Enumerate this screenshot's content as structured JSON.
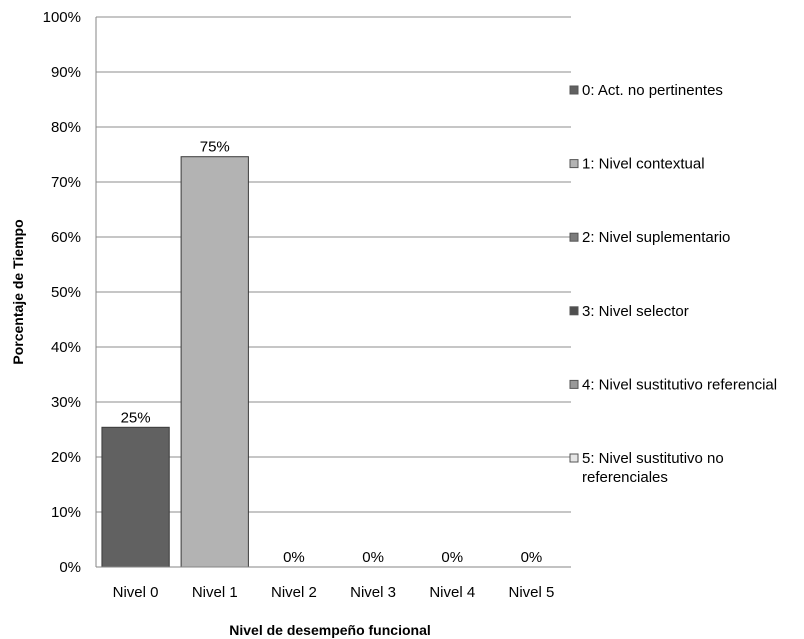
{
  "chart_data": {
    "type": "bar",
    "title": "",
    "xlabel": "Nivel de desempeño funcional",
    "ylabel": "Porcentaje de Tiempo",
    "categories": [
      "Nivel 0",
      "Nivel 1",
      "Nivel 2",
      "Nivel 3",
      "Nivel 4",
      "Nivel 5"
    ],
    "values": [
      25.4,
      74.6,
      0,
      0,
      0,
      0
    ],
    "data_labels": [
      "25%",
      "75%",
      "0%",
      "0%",
      "0%",
      "0%"
    ],
    "bar_colors": [
      "#616161",
      "#b3b3b3",
      "#7b7b7b",
      "#4f4f4f",
      "#999999",
      "#e6e6e6"
    ],
    "ylim": [
      0,
      100
    ],
    "y_ticks": [
      0,
      10,
      20,
      30,
      40,
      50,
      60,
      70,
      80,
      90,
      100
    ],
    "y_tick_labels": [
      "0%",
      "10%",
      "20%",
      "30%",
      "40%",
      "50%",
      "60%",
      "70%",
      "80%",
      "90%",
      "100%"
    ],
    "grid": true,
    "legend_position": "right",
    "legend": [
      {
        "lines": [
          "0: Act. no pertinentes"
        ],
        "color": "#616161"
      },
      {
        "lines": [
          "1: Nivel contextual"
        ],
        "color": "#b3b3b3"
      },
      {
        "lines": [
          "2: Nivel  suplementario"
        ],
        "color": "#7b7b7b"
      },
      {
        "lines": [
          "3: Nivel selector"
        ],
        "color": "#4f4f4f"
      },
      {
        "lines": [
          "4: Nivel  sustitutivo referencial"
        ],
        "color": "#999999"
      },
      {
        "lines": [
          "5: Nivel sustitutivo no",
          "referenciales"
        ],
        "color": "#e6e6e6"
      }
    ]
  }
}
